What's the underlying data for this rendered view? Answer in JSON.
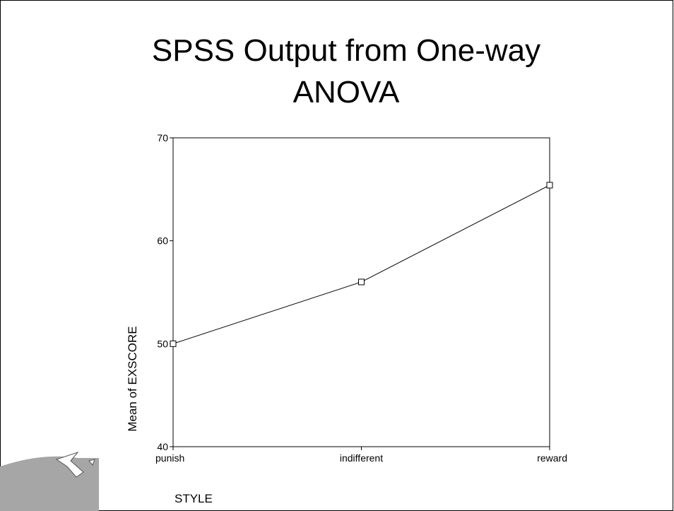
{
  "chart_data": {
    "type": "line",
    "title_lines": [
      "SPSS Output from One-way",
      "ANOVA"
    ],
    "x_label": "STYLE",
    "y_label": "Mean of EXSCORE",
    "categories": [
      "punish",
      "indifferent",
      "reward"
    ],
    "values": [
      50.0,
      56.0,
      65.4
    ],
    "color": "#000000",
    "ylim": [
      40,
      70
    ],
    "yticks": [
      40,
      50,
      60,
      70
    ]
  }
}
